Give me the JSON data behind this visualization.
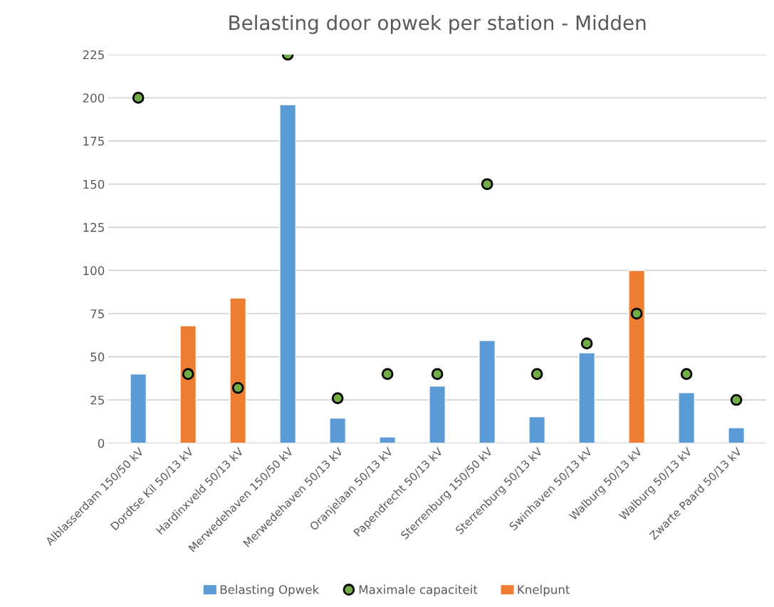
{
  "chart_data": {
    "type": "bar",
    "title": "Belasting door opwek per station - Midden",
    "categories": [
      "Alblasserdam 150/50 kV",
      "Dordtse Kil 50/13 kV",
      "Hardinxveld 50/13 kV",
      "Merwedehaven 150/50 kV",
      "Merwedehaven 50/13 kV",
      "Oranjelaan 50/13 kV",
      "Papendrecht 50/13 kV",
      "Sterrenburg 150/50 kV",
      "Sterrenburg 50/13 kV",
      "Swinhaven 50/13 kV",
      "Walburg 50/13 kV",
      "Walburg 50/13 kV",
      "Zwarte Paard 50/13 kV"
    ],
    "series": [
      {
        "name": "Belasting Opwek",
        "color": "#5b9bd5",
        "values": [
          40,
          null,
          null,
          196,
          14.5,
          3.6,
          33,
          59.4,
          15.3,
          52.3,
          null,
          29.2,
          8.9
        ]
      },
      {
        "name": "Maximale capaciteit",
        "type": "scatter",
        "color": "#70ad47",
        "marker": "circle",
        "values": [
          200,
          40,
          32,
          225,
          26,
          40,
          40,
          150,
          40,
          57.7,
          75,
          40,
          25
        ]
      },
      {
        "name": "Knelpunt",
        "color": "#ed7d31",
        "values": [
          null,
          68,
          84,
          null,
          null,
          null,
          null,
          null,
          null,
          null,
          100,
          null,
          null
        ]
      }
    ],
    "ylim": [
      0,
      225
    ],
    "yticks": [
      0,
      25,
      50,
      75,
      100,
      125,
      150,
      175,
      200,
      225
    ],
    "grid": "y",
    "legend": "bottom"
  }
}
